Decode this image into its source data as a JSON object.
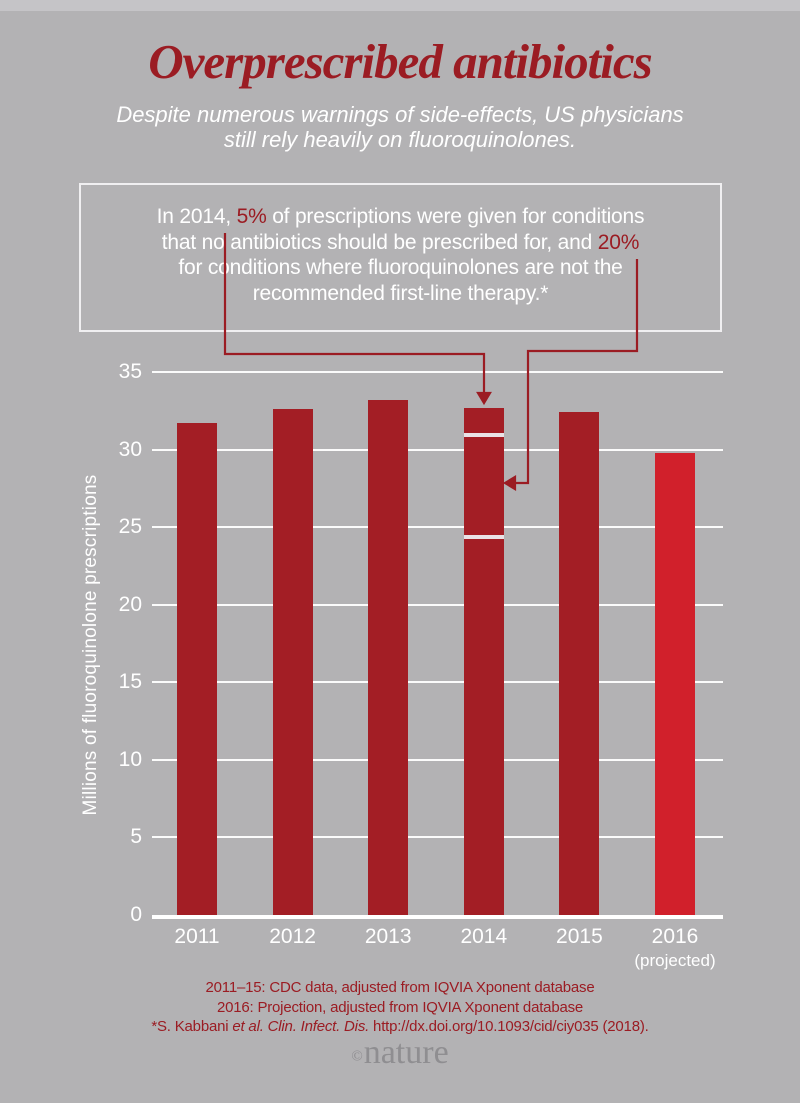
{
  "page": {
    "background": "#b3b2b4",
    "top_strip_color": "#c5c4c7"
  },
  "colors": {
    "accent_dark_red": "#9b1c23",
    "bar_dark_red": "#a31e25",
    "bar_bright_red": "#d1202b",
    "white": "#ffffff",
    "logo_gray": "#8f8e91"
  },
  "header": {
    "title": "Overprescribed antibiotics",
    "subtitle_line1": "Despite numerous warnings of side-effects, US physicians",
    "subtitle_line2": "still rely heavily on fluoroquinolones."
  },
  "callout": {
    "lines": [
      [
        {
          "text": "In 2014, "
        },
        {
          "text": "5%",
          "accent": true
        },
        {
          "text": " of prescriptions were given for conditions"
        }
      ],
      [
        {
          "text": "that no antibiotics should be prescribed for, and "
        },
        {
          "text": "20%",
          "accent": true
        }
      ],
      [
        {
          "text": "for conditions where fluoroquinolones are not the"
        }
      ],
      [
        {
          "text": "recommended first-line therapy.*"
        }
      ]
    ]
  },
  "chart_data": {
    "type": "bar",
    "title": "Overprescribed antibiotics",
    "categories": [
      "2011",
      "2012",
      "2013",
      "2014",
      "2015",
      "2016"
    ],
    "values": [
      31.7,
      32.6,
      33.2,
      32.7,
      32.4,
      29.8
    ],
    "bar_palette": [
      "dark",
      "dark",
      "dark",
      "dark",
      "dark",
      "bright"
    ],
    "xlabel": "",
    "ylabel": "Millions of fluoroquinolone prescriptions",
    "ylim": [
      0,
      35
    ],
    "ytick_step": 5,
    "yticks": [
      0,
      5,
      10,
      15,
      20,
      25,
      30,
      35
    ],
    "grid": "horizontal-white",
    "x_note": {
      "category": "2016",
      "label": "(projected)"
    },
    "segmented_bar": {
      "category": "2014",
      "break_values": [
        31.1,
        24.5
      ],
      "segment_meaning": [
        "top segment = 5% given for conditions needing no antibiotics",
        "middle segment = 20% given where fluoroquinolones are not first-line therapy"
      ]
    }
  },
  "footer": {
    "captions": [
      [
        {
          "text": "2011–15: CDC data, adjusted from IQVIA Xponent database"
        }
      ],
      [
        {
          "text": "2016: Projection, adjusted from IQVIA Xponent database"
        }
      ],
      [
        {
          "text": "*S. Kabbani "
        },
        {
          "text": "et al.",
          "italic": true
        },
        {
          "text": " "
        },
        {
          "text": "Clin. Infect. Dis.",
          "italic": true
        },
        {
          "text": " http://dx.doi.org/10.1093/cid/ciy035 (2018)."
        }
      ]
    ],
    "logo_copyright": "©",
    "logo_name": "nature"
  }
}
